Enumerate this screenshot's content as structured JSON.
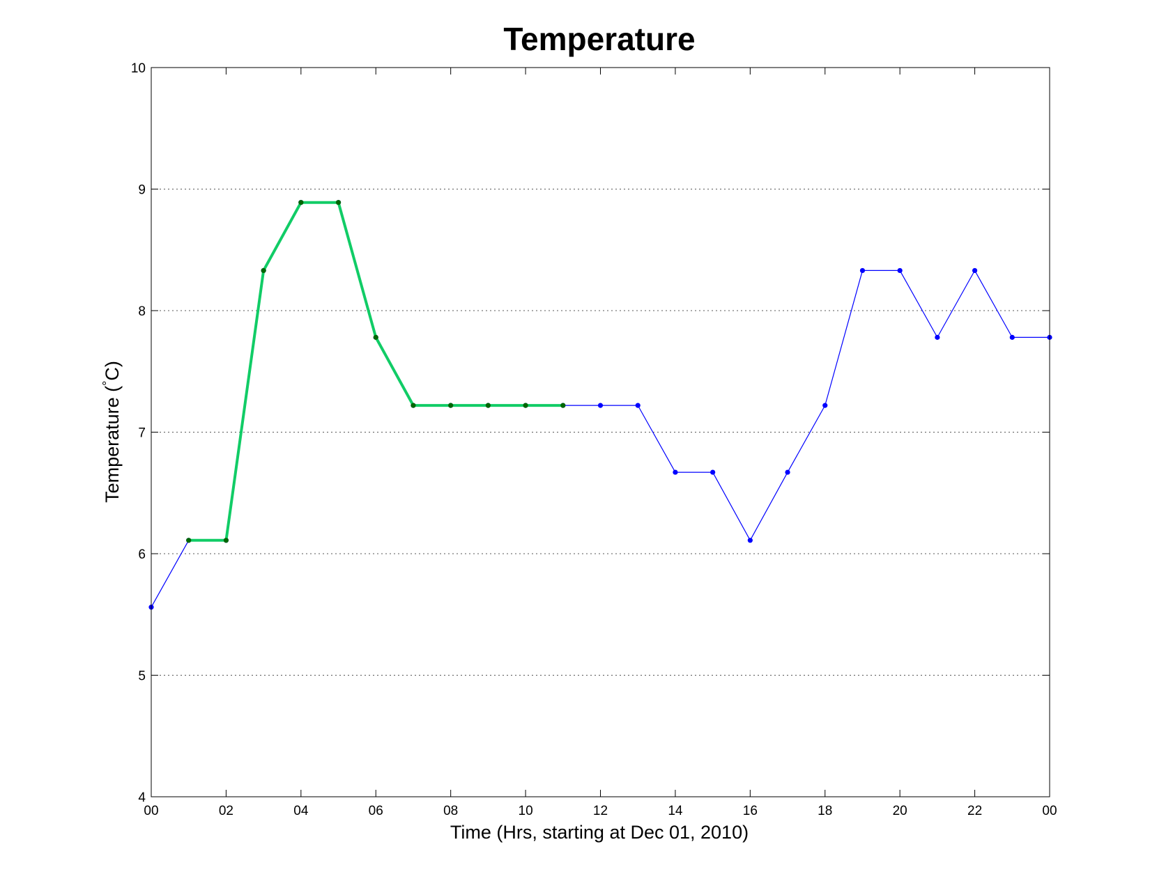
{
  "chart_data": {
    "type": "line",
    "title": "Temperature",
    "xlabel": "Time (Hrs, starting at Dec 01, 2010)",
    "ylabel_main": "Temperature (",
    "ylabel_degree": "°",
    "ylabel_unit": "C)",
    "ylim": [
      4,
      10
    ],
    "yticks": [
      "4",
      "5",
      "6",
      "7",
      "8",
      "9",
      "10"
    ],
    "xlim": [
      0,
      24
    ],
    "xticks": [
      "00",
      "02",
      "04",
      "06",
      "08",
      "10",
      "12",
      "14",
      "16",
      "18",
      "20",
      "22",
      "00"
    ],
    "grid": "horizontal-dotted",
    "series": [
      {
        "x": [
          0,
          1,
          2,
          3,
          4,
          5,
          6,
          7,
          8,
          9,
          10,
          11,
          12,
          13,
          14,
          15,
          16,
          17,
          18,
          19,
          20,
          21,
          22,
          23,
          24
        ],
        "values": [
          5.56,
          6.11,
          6.11,
          8.33,
          8.89,
          8.89,
          7.78,
          7.22,
          7.22,
          7.22,
          7.22,
          7.22,
          7.22,
          7.22,
          6.67,
          6.67,
          6.11,
          6.67,
          7.22,
          8.33,
          8.33,
          7.78,
          8.33,
          7.78,
          7.78
        ],
        "color": "#0000ff",
        "marker_color": "#0000ff"
      },
      {
        "x": [
          1,
          2,
          3,
          4,
          5,
          6,
          7,
          8,
          9,
          10,
          11
        ],
        "values": [
          6.11,
          6.11,
          8.33,
          8.89,
          8.89,
          7.78,
          7.22,
          7.22,
          7.22,
          7.22,
          7.22
        ],
        "color": "#11cc66",
        "marker_color": "#006600"
      }
    ]
  }
}
